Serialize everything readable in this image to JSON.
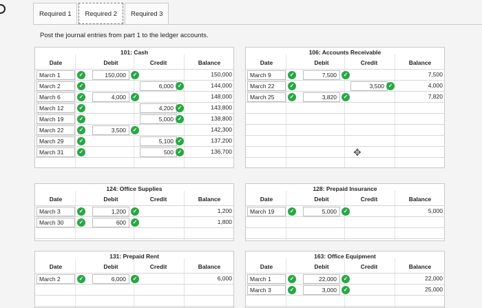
{
  "tabs": [
    {
      "label": "Required 1",
      "active": false
    },
    {
      "label": "Required 2",
      "active": true
    },
    {
      "label": "Required 3",
      "active": false
    }
  ],
  "instruction": "Post the journal entries from part 1 to the ledger accounts.",
  "headers": {
    "date": "Date",
    "debit": "Debit",
    "credit": "Credit",
    "balance": "Balance"
  },
  "icons": {
    "check": "check-circle-icon",
    "cursor": "move-cursor-icon",
    "check_color": "#28a745"
  },
  "accounts": {
    "cash": {
      "title": "101: Cash",
      "rows": [
        {
          "date": "March 1",
          "debit": "150,000",
          "credit": "",
          "balance": "150,000"
        },
        {
          "date": "March 2",
          "debit": "",
          "credit": "6,000",
          "balance": "144,000"
        },
        {
          "date": "March 6",
          "debit": "4,000",
          "credit": "",
          "balance": "148,000"
        },
        {
          "date": "March 12",
          "debit": "",
          "credit": "4,200",
          "balance": "143,800"
        },
        {
          "date": "March 19",
          "debit": "",
          "credit": "5,000",
          "balance": "138,800"
        },
        {
          "date": "March 22",
          "debit": "3,500",
          "credit": "",
          "balance": "142,300"
        },
        {
          "date": "March 29",
          "debit": "",
          "credit": "5,100",
          "balance": "137,200"
        },
        {
          "date": "March 31",
          "debit": "",
          "credit": "500",
          "balance": "136,700"
        }
      ]
    },
    "ar": {
      "title": "106: Accounts Receivable",
      "rows": [
        {
          "date": "March 9",
          "debit": "7,500",
          "credit": "",
          "balance": "7,500"
        },
        {
          "date": "March 22",
          "debit": "",
          "credit": "3,500",
          "balance": "4,000"
        },
        {
          "date": "March 25",
          "debit": "3,820",
          "credit": "",
          "balance": "7,820"
        }
      ]
    },
    "supplies": {
      "title": "124: Office Supplies",
      "rows": [
        {
          "date": "March 3",
          "debit": "1,200",
          "credit": "",
          "balance": "1,200"
        },
        {
          "date": "March 30",
          "debit": "600",
          "credit": "",
          "balance": "1,800"
        }
      ]
    },
    "insurance": {
      "title": "128: Prepaid Insurance",
      "rows": [
        {
          "date": "March 19",
          "debit": "5,000",
          "credit": "",
          "balance": "5,000"
        }
      ]
    },
    "rent": {
      "title": "131: Prepaid Rent",
      "rows": [
        {
          "date": "March 2",
          "debit": "6,000",
          "credit": "",
          "balance": "6,000"
        }
      ]
    },
    "equipment": {
      "title": "163: Office Equipment",
      "rows": [
        {
          "date": "March 1",
          "debit": "22,000",
          "credit": "",
          "balance": "22,000"
        },
        {
          "date": "March 3",
          "debit": "3,000",
          "credit": "",
          "balance": "25,000"
        }
      ]
    }
  }
}
